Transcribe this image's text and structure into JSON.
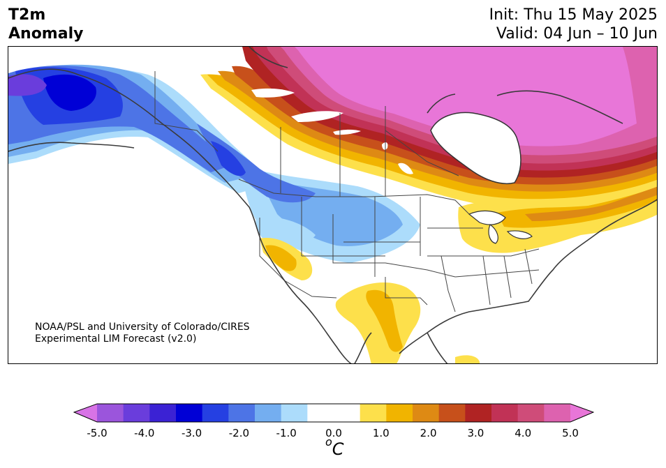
{
  "header": {
    "title_line1": "T2m",
    "title_line2": "Anomaly",
    "init": "Init: Thu 15 May 2025",
    "valid": "Valid: 04 Jun – 10 Jun"
  },
  "credit": {
    "line1": "NOAA/PSL and University of Colorado/CIRES",
    "line2": "Experimental LIM Forecast (v2.0)"
  },
  "colorbar": {
    "ticks": [
      "-5.0",
      "-4.0",
      "-3.0",
      "-2.0",
      "-1.0",
      "0.0",
      "1.0",
      "2.0",
      "3.0",
      "4.0",
      "5.0"
    ],
    "unit_prefix": "o",
    "unit": "C",
    "colors": [
      "#d873e6",
      "#9b55dc",
      "#6a3ddc",
      "#3b22d4",
      "#0000d6",
      "#2540e2",
      "#4d74e6",
      "#74aef0",
      "#acdcfb",
      "#ffffff",
      "#ffffff",
      "#fde04b",
      "#f1b400",
      "#de8a14",
      "#c7501b",
      "#b02323",
      "#c13256",
      "#cf4c79",
      "#dd62af",
      "#e876d8"
    ]
  }
}
